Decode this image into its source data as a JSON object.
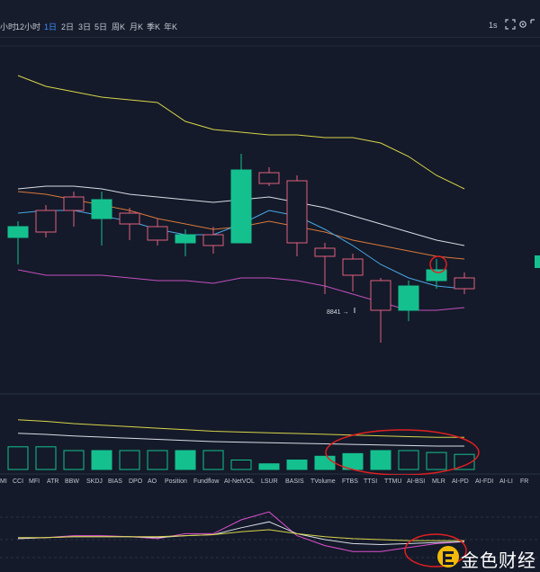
{
  "toolbar": {
    "timeframes": [
      {
        "label": "小时",
        "active": false
      },
      {
        "label": "12小时",
        "active": false
      },
      {
        "label": "1日",
        "active": true
      },
      {
        "label": "2日",
        "active": false
      },
      {
        "label": "3日",
        "active": false
      },
      {
        "label": "5日",
        "active": false
      },
      {
        "label": "周K",
        "active": false
      },
      {
        "label": "月K",
        "active": false
      },
      {
        "label": "季K",
        "active": false
      },
      {
        "label": "年K",
        "active": false
      }
    ],
    "interval_label": "1s",
    "icons": [
      "expand-icon",
      "settings-icon",
      "fullscreen-icon"
    ]
  },
  "colors": {
    "up": "#15c08f",
    "down": "#e0607e",
    "ma_yellow": "#d8d44a",
    "ma_white": "#d9dce6",
    "ma_orange": "#d9783a",
    "ma_blue": "#4aa7e6",
    "ma_magenta": "#c450c0",
    "annotation_red": "#e02020"
  },
  "price_marker": "8841",
  "indicators": [
    "MI",
    "CCI",
    "MFI",
    "ATR",
    "BBW",
    "SKDJ",
    "BIAS",
    "DPO",
    "AO",
    "Position",
    "Fundflow",
    "AI-NetVOL",
    "LSUR",
    "BASIS",
    "TVolume",
    "FTBS",
    "TTSI",
    "TTMU",
    "AI-BSI",
    "MLR",
    "AI-PD",
    "AI-FDI",
    "AI-LI",
    "FR"
  ],
  "logo": {
    "text": "金色财经"
  },
  "chart_data": {
    "type": "candlestick",
    "title": "",
    "candles": [
      {
        "open": 12,
        "close": 16,
        "high": 18,
        "low": 2
      },
      {
        "open": 22,
        "close": 14,
        "high": 24,
        "low": 12
      },
      {
        "open": 27,
        "close": 22,
        "high": 29,
        "low": 16
      },
      {
        "open": 19,
        "close": 26,
        "high": 29,
        "low": 9
      },
      {
        "open": 21,
        "close": 17,
        "high": 23,
        "low": 11
      },
      {
        "open": 16,
        "close": 11,
        "high": 19,
        "low": 9
      },
      {
        "open": 10,
        "close": 13,
        "high": 15,
        "low": 5
      },
      {
        "open": 13,
        "close": 9,
        "high": 16,
        "low": 6
      },
      {
        "open": 10,
        "close": 37,
        "high": 43,
        "low": 10
      },
      {
        "open": 36,
        "close": 32,
        "high": 38,
        "low": 31
      },
      {
        "open": 33,
        "close": 10,
        "high": 35,
        "low": 5
      },
      {
        "open": 8,
        "close": 5,
        "high": 10,
        "low": -9
      },
      {
        "open": 4,
        "close": -2,
        "high": 6,
        "low": -8
      },
      {
        "open": -4,
        "close": -15,
        "high": -3,
        "low": -27
      },
      {
        "open": -15,
        "close": -6,
        "high": -4,
        "low": -19
      },
      {
        "open": -4,
        "close": 0,
        "high": 4,
        "low": -7
      },
      {
        "open": -3,
        "close": -7,
        "high": -1,
        "low": -9
      }
    ],
    "ma_lines": [
      {
        "color": "#d8d44a",
        "values": [
          72,
          68,
          66,
          64,
          63,
          62,
          55,
          52,
          51,
          50,
          50,
          49,
          49,
          47,
          42,
          35,
          30
        ]
      },
      {
        "color": "#d9dce6",
        "values": [
          30,
          31,
          31,
          30,
          28,
          27,
          26,
          25,
          26,
          27,
          25,
          23,
          20,
          17,
          14,
          11,
          9
        ]
      },
      {
        "color": "#d9783a",
        "values": [
          29,
          28,
          26,
          24,
          22,
          19,
          17,
          15,
          16,
          18,
          16,
          14,
          11,
          9,
          7,
          5,
          4
        ]
      },
      {
        "color": "#4aa7e6",
        "values": [
          21,
          22,
          22,
          20,
          18,
          15,
          13,
          13,
          17,
          22,
          20,
          15,
          9,
          2,
          -3,
          -6,
          -7
        ]
      },
      {
        "color": "#c450c0",
        "values": [
          0,
          -2,
          -2,
          -2,
          -3,
          -4,
          -4,
          -5,
          -3,
          -3,
          -4,
          -6,
          -9,
          -12,
          -15,
          -15,
          -14
        ]
      }
    ],
    "volume": [
      {
        "value": 6,
        "up": false
      },
      {
        "value": 6,
        "up": false
      },
      {
        "value": 5,
        "up": false
      },
      {
        "value": 5,
        "up": true
      },
      {
        "value": 5,
        "up": false
      },
      {
        "value": 5,
        "up": false
      },
      {
        "value": 5,
        "up": true
      },
      {
        "value": 5,
        "up": false
      },
      {
        "value": 2.5,
        "up": false
      },
      {
        "value": 1.5,
        "up": true
      },
      {
        "value": 2.5,
        "up": true
      },
      {
        "value": 3.5,
        "up": true
      },
      {
        "value": 4.2,
        "up": true
      },
      {
        "value": 5,
        "up": true
      },
      {
        "value": 5,
        "up": false
      },
      {
        "value": 4.5,
        "up": false
      },
      {
        "value": 4,
        "up": false
      }
    ],
    "volume_line": [
      6.5,
      6.3,
      6.0,
      5.8,
      5.6,
      5.4,
      5.2,
      5.0,
      4.9,
      4.8,
      4.7,
      4.6,
      4.5,
      4.4,
      4.3,
      4.2,
      4.2
    ],
    "osc_lines": [
      {
        "color": "#e050d0",
        "values": [
          1,
          2,
          4,
          4,
          3,
          1,
          6,
          6,
          20,
          28,
          4,
          -6,
          -12,
          -12,
          -8,
          -4,
          -2
        ]
      },
      {
        "color": "#d9dce6",
        "values": [
          1,
          2,
          3,
          3,
          3,
          2,
          4,
          5,
          12,
          18,
          6,
          0,
          -4,
          -5,
          -4,
          -3,
          -2
        ]
      },
      {
        "color": "#d8d44a",
        "values": [
          2,
          2,
          3,
          3,
          3,
          3,
          4,
          5,
          8,
          10,
          6,
          3,
          1,
          0,
          -1,
          -1,
          -1
        ]
      }
    ]
  }
}
